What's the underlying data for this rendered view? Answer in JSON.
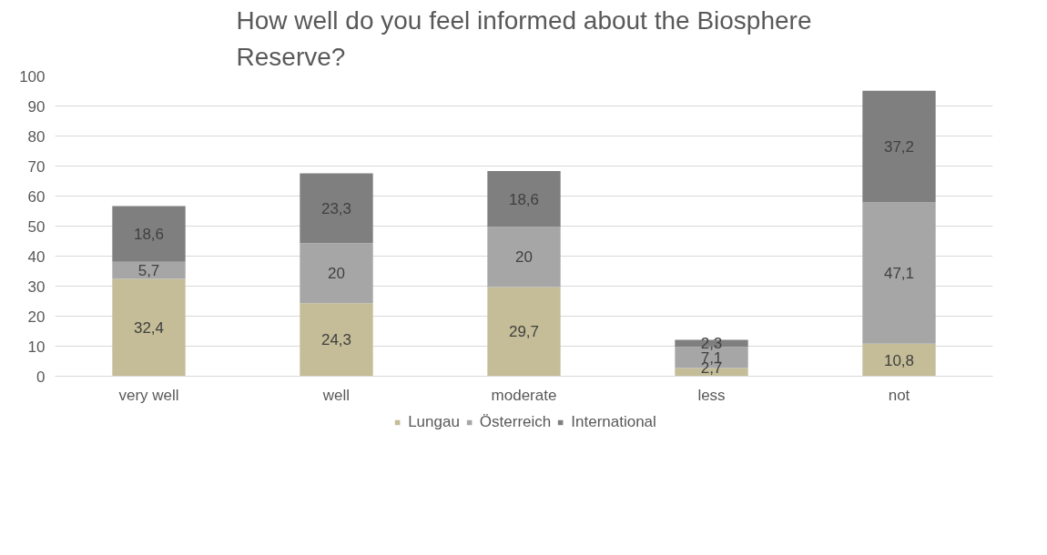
{
  "chart_data": {
    "type": "bar",
    "stacked": true,
    "title": "How well do you feel informed about the Biosphere Reserve?",
    "categories": [
      "very well",
      "well",
      "moderate",
      "less",
      "not"
    ],
    "series": [
      {
        "name": "Lungau",
        "color": "#c4bd97",
        "values": [
          32.4,
          24.3,
          29.7,
          2.7,
          10.8
        ],
        "value_labels": [
          "32,4",
          "24,3",
          "29,7",
          "2,7",
          "10,8"
        ]
      },
      {
        "name": "Österreich",
        "color": "#a6a6a6",
        "values": [
          5.7,
          20,
          20,
          7.1,
          47.1
        ],
        "value_labels": [
          "5,7",
          "20",
          "20",
          "7,1",
          "47,1"
        ]
      },
      {
        "name": "International",
        "color": "#7f7f7f",
        "values": [
          18.6,
          23.3,
          18.6,
          2.3,
          37.2
        ],
        "value_labels": [
          "18,6",
          "23,3",
          "18,6",
          "2,3",
          "37,2"
        ]
      }
    ],
    "ylim": [
      0,
      100
    ],
    "yticks": [
      0,
      10,
      20,
      30,
      40,
      50,
      60,
      70,
      80,
      90,
      100
    ],
    "grid": "y",
    "legend": "bottom"
  }
}
